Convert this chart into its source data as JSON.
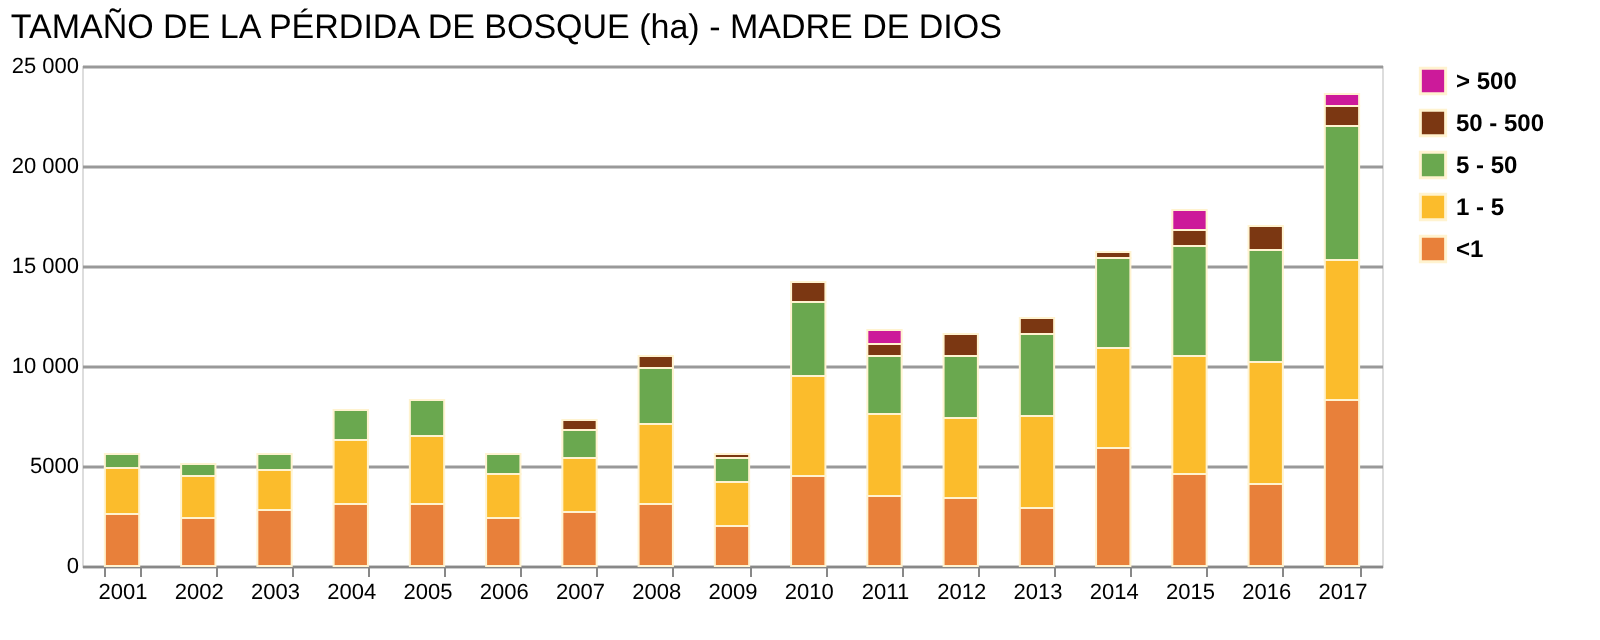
{
  "chart_data": {
    "type": "bar",
    "title": "TAMAÑO DE LA PÉRDIDA DE BOSQUE (ha) - MADRE DE DIOS",
    "stacked": true,
    "categories": [
      "2001",
      "2002",
      "2003",
      "2004",
      "2005",
      "2006",
      "2007",
      "2008",
      "2009",
      "2010",
      "2011",
      "2012",
      "2013",
      "2014",
      "2015",
      "2016",
      "2017"
    ],
    "series": [
      {
        "name": "<1",
        "color": "#e8803a",
        "values": [
          2600,
          2400,
          2800,
          3100,
          3100,
          2400,
          2700,
          3100,
          2000,
          4500,
          3500,
          3400,
          2900,
          5900,
          4600,
          4100,
          8300
        ]
      },
      {
        "name": "1 - 5",
        "color": "#fbbc2c",
        "values": [
          2300,
          2100,
          2000,
          3200,
          3400,
          2200,
          2700,
          4000,
          2200,
          5000,
          4100,
          4000,
          4600,
          5000,
          5900,
          6100,
          7000
        ]
      },
      {
        "name": "5 - 50",
        "color": "#6aa84f",
        "values": [
          700,
          600,
          800,
          1500,
          1800,
          1000,
          1400,
          2800,
          1200,
          3700,
          2900,
          3100,
          4100,
          4500,
          5500,
          5600,
          6700
        ]
      },
      {
        "name": "50 - 500",
        "color": "#7b3712",
        "values": [
          null,
          null,
          null,
          null,
          null,
          null,
          500,
          600,
          200,
          1000,
          600,
          1100,
          800,
          300,
          800,
          1200,
          1000
        ]
      },
      {
        "name": "> 500",
        "color": "#cc1a9a",
        "values": [
          null,
          null,
          null,
          null,
          null,
          null,
          null,
          null,
          null,
          null,
          700,
          null,
          null,
          null,
          1000,
          null,
          600
        ]
      }
    ],
    "ylim": [
      0,
      25000
    ],
    "yticks": [
      0,
      5000,
      {
        "value": 10000,
        "label": "10 000"
      },
      {
        "value": 15000,
        "label": "15 000"
      },
      {
        "value": 20000,
        "label": "20 000"
      },
      {
        "value": 25000,
        "label": "25 000"
      }
    ],
    "grid": "y",
    "legend": "right"
  }
}
